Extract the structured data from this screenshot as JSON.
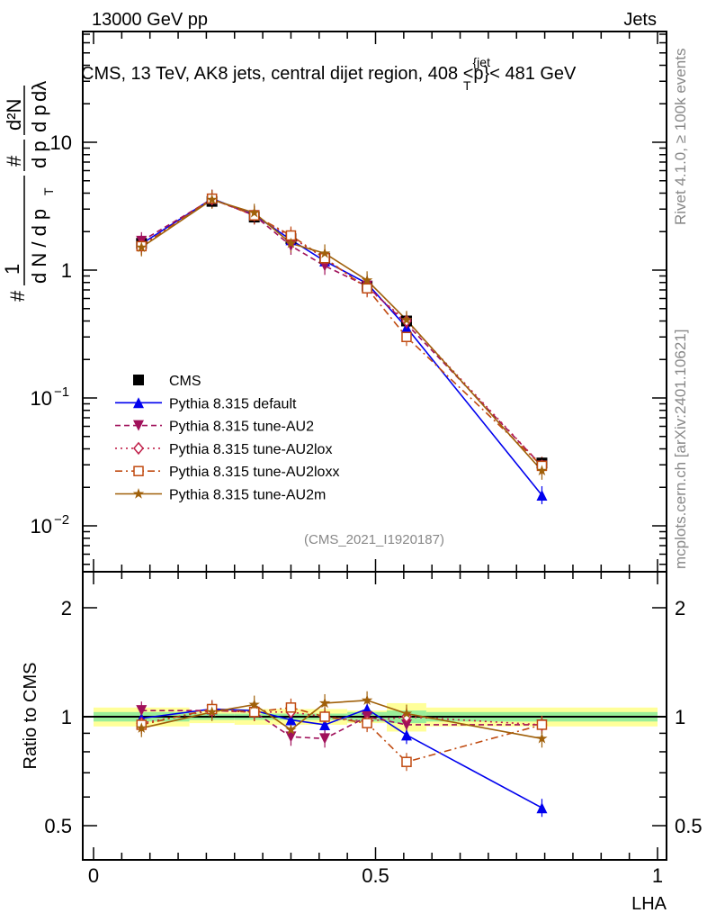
{
  "header": {
    "left": "13000 GeV pp",
    "right": "Jets"
  },
  "side_texts": {
    "rivet": "Rivet 4.1.0, ≥ 100k events",
    "mcplots": "mcplots.cern.ch [arXiv:2401.10621]"
  },
  "analysis_id": "(CMS_2021_I1920187)",
  "colors": {
    "cms": "#000000",
    "default": "#0000ee",
    "au2": "#a0105a",
    "au2lox": "#c0204a",
    "au2loxx": "#c04a10",
    "au2m": "#a0600a",
    "band_yellow": "#ffff99",
    "band_green": "#99ee99"
  },
  "chart_data": [
    {
      "type": "line",
      "panel": "main",
      "title": "CMS, 13 TeV, AK8 jets, central dijet region, 408 <p_T^{jet}< 481 GeV",
      "title_parts": {
        "pre": "CMS, 13 TeV, AK8 jets, central dijet region, 408 <p",
        "sup": "{jet",
        "sub": "T",
        "post": "}< 481 GeV"
      },
      "ylabel": "1/dN/dp_T d#/dp_T d²N/dp_T dλ",
      "ylabel_parts": {
        "a": "#",
        "b": "1",
        "c": "d N / d p",
        "d": "T",
        "e": "#",
        "f": "d p",
        "g": "d²N",
        "h": "d p",
        "i": "dλ"
      },
      "yscale": "log",
      "ylim": [
        0.0044,
        73
      ],
      "xlim": [
        0,
        1
      ],
      "ytick_labels": [
        {
          "v": 10,
          "t": "10"
        },
        {
          "v": 1,
          "t": "1"
        },
        {
          "v": 0.1,
          "t": "10",
          "exp": "−1"
        },
        {
          "v": 0.01,
          "t": "10",
          "exp": "−2"
        }
      ],
      "legend_placement": "center-left",
      "x": [
        0.085,
        0.21,
        0.285,
        0.35,
        0.41,
        0.485,
        0.555,
        0.795
      ],
      "data": {
        "name": "CMS",
        "values": [
          1.62,
          3.45,
          2.6,
          1.76,
          1.24,
          0.75,
          0.4,
          0.031
        ]
      },
      "series": [
        {
          "key": "default",
          "name": "Pythia 8.315 default",
          "ratio": [
            0.99,
            1.05,
            1.04,
            0.98,
            0.95,
            1.05,
            0.89,
            0.56
          ]
        },
        {
          "key": "au2",
          "name": "Pythia 8.315 tune-AU2",
          "ratio": [
            1.04,
            1.04,
            1.03,
            0.88,
            0.87,
            1.0,
            0.95,
            0.95
          ]
        },
        {
          "key": "au2lox",
          "name": "Pythia 8.315 tune-AU2lox",
          "ratio": [
            0.96,
            1.04,
            1.03,
            1.03,
            1.0,
            0.97,
            1.0,
            0.95
          ]
        },
        {
          "key": "au2loxx",
          "name": "Pythia 8.315 tune-AU2loxx",
          "ratio": [
            0.95,
            1.05,
            1.03,
            1.06,
            1.0,
            0.96,
            0.75,
            0.95
          ]
        },
        {
          "key": "au2m",
          "name": "Pythia 8.315 tune-AU2m",
          "ratio": [
            0.93,
            1.03,
            1.08,
            0.92,
            1.09,
            1.11,
            1.02,
            0.87
          ]
        }
      ]
    },
    {
      "type": "line",
      "panel": "ratio",
      "ylabel": "Ratio to CMS",
      "xlabel": "LHA",
      "yscale": "log",
      "ylim": [
        0.4,
        2.5
      ],
      "xlim": [
        0,
        1
      ],
      "ytick_labels": [
        {
          "v": 2,
          "t": "2"
        },
        {
          "v": 1,
          "t": "1"
        },
        {
          "v": 0.5,
          "t": "0.5"
        }
      ],
      "xtick_labels": [
        {
          "v": 0,
          "t": "0"
        },
        {
          "v": 0.5,
          "t": "0.5"
        },
        {
          "v": 1,
          "t": "1"
        }
      ],
      "band_bins": [
        0,
        0.17,
        0.25,
        0.32,
        0.375,
        0.45,
        0.52,
        0.59,
        1.0
      ],
      "band_yellow_halfwidth": [
        0.06,
        0.04,
        0.05,
        0.05,
        0.05,
        0.04,
        0.09,
        0.06
      ],
      "band_green_halfwidth": [
        0.03,
        0.02,
        0.02,
        0.02,
        0.02,
        0.03,
        0.04,
        0.03
      ]
    }
  ]
}
